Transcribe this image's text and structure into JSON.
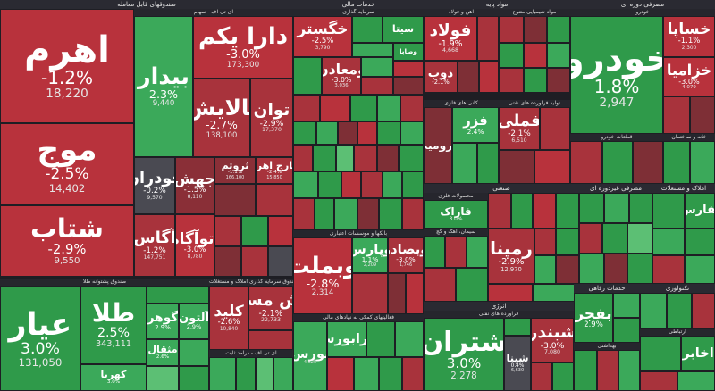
{
  "colors": {
    "up_strong": "#2f9a4a",
    "up_mid": "#3ba95a",
    "up_light": "#5cbf74",
    "down_strong": "#b8323c",
    "down_mid": "#a8333c",
    "down_dark": "#7e2f36",
    "neutral": "#4a4a52",
    "background": "#1e1e24"
  },
  "sectors": {
    "funds": "صندوقهای قابل معامله",
    "funds_sub": "ای تی اف - سهام",
    "fund_gold": "صندوق پشتوانه طلا",
    "fund_land": "صندوق سرمایه گذاری املاک و مستغلات",
    "fund_fixed": "ای تی اف - درآمد ثابت",
    "financial": "خدمات مالی",
    "financial_sub": "سرمایه گذاری",
    "bank": "بانکها و موسسات اعتباری",
    "financial2": "فعالیتهای کمکی به نهادهای مالی",
    "basic": "مواد پایه",
    "iron": "آهن و فولاد",
    "chem": "مواد شیمیایی متنوع",
    "copper": "کانی های فلزی",
    "petro": "تولید فرآورده های نفتی",
    "auto": "مصرفی دوره ای",
    "auto_sub": "خودرو",
    "auto_parts": "قطعات خودرو",
    "housing": "خانه و ساختمان",
    "industrial": "صنعتی",
    "metal": "محصولات فلزی",
    "cement": "سیمان، آهک و گچ",
    "non_durable": "مصرفی غیردوره ای",
    "real_estate": "املاک و مستغلات",
    "energy": "انرژی",
    "refinery": "فراورده های نفتی",
    "welfare": "خدمات رفاهی",
    "tech": "تکنولوژی",
    "telecom": "ارتباطی",
    "health": "بهداشتی"
  },
  "tiles": [
    {
      "key": "ahrom",
      "name": "اهرم",
      "pct": "-1.2%",
      "val": "18,220",
      "color": "#b8323c"
    },
    {
      "key": "mowj",
      "name": "موج",
      "pct": "-2.5%",
      "val": "14,402",
      "color": "#b8323c"
    },
    {
      "key": "shetab",
      "name": "شتاب",
      "pct": "-2.9%",
      "val": "9,550",
      "color": "#b8323c"
    },
    {
      "key": "darayekom",
      "name": "دارا یکم",
      "pct": "-3.0%",
      "val": "173,300",
      "color": "#b8323c"
    },
    {
      "key": "bidar",
      "name": "بیدار",
      "pct": "2.3%",
      "val": "9,440",
      "color": "#3ba95a"
    },
    {
      "key": "palaiesh",
      "name": "پالایش",
      "pct": "-2.7%",
      "val": "138,100",
      "color": "#a8333c"
    },
    {
      "key": "tavan",
      "name": "توان",
      "pct": "-2.9%",
      "val": "17,370",
      "color": "#a8333c"
    },
    {
      "key": "khodran",
      "name": "خودران",
      "pct": "-0.2%",
      "val": "9,570",
      "color": "#4a4a52"
    },
    {
      "key": "jahesh",
      "name": "جهش",
      "pct": "-1.5%",
      "val": "8,110",
      "color": "#8a2f37"
    },
    {
      "key": "teroutom",
      "name": "ثروتم",
      "pct": "-1.1%",
      "val": "166,100",
      "color": "#8a2f37"
    },
    {
      "key": "kharej",
      "name": "خارج اهرم",
      "pct": "-2.4%",
      "val": "15,850",
      "color": "#a8333c"
    },
    {
      "key": "agas",
      "name": "آگاس",
      "pct": "-1.2%",
      "val": "147,751",
      "color": "#a8333c"
    },
    {
      "key": "atrgah",
      "name": "اتوآگاه",
      "pct": "-3.0%",
      "val": "8,780",
      "color": "#b8323c"
    },
    {
      "key": "ayar",
      "name": "عیار",
      "pct": "3.0%",
      "val": "131,050",
      "color": "#2f9a4a"
    },
    {
      "key": "tala",
      "name": "طلا",
      "pct": "2.5%",
      "val": "343,111",
      "color": "#2f9a4a"
    },
    {
      "key": "gohar",
      "name": "گوهر",
      "pct": "2.9%",
      "val": "",
      "color": "#3ba95a"
    },
    {
      "key": "alton",
      "name": "آلتون",
      "pct": "2.9%",
      "val": "",
      "color": "#3ba95a"
    },
    {
      "key": "mesghal",
      "name": "مثقال",
      "pct": "2.6%",
      "val": "",
      "color": "#3ba95a"
    },
    {
      "key": "kahroba",
      "name": "کهربا",
      "pct": "3.0%",
      "val": "",
      "color": "#3ba95a"
    },
    {
      "key": "kelid",
      "name": "کلید",
      "pct": "-2.6%",
      "val": "10,840",
      "color": "#a8333c"
    },
    {
      "key": "zeshmask",
      "name": "زش مسکا",
      "pct": "-2.1%",
      "val": "22,733",
      "color": "#a8333c"
    },
    {
      "key": "khegostar",
      "name": "خگستر",
      "pct": "-2.5%",
      "val": "3,790",
      "color": "#b8323c"
    },
    {
      "key": "sita",
      "name": "سیتا",
      "pct": "",
      "val": "",
      "color": "#2f9a4a"
    },
    {
      "key": "vamaaden",
      "name": "ومعادن",
      "pct": "-3.0%",
      "val": "3,036",
      "color": "#a8333c"
    },
    {
      "key": "vasapa",
      "name": "وصاپا",
      "pct": "",
      "val": "",
      "color": "#2f9a4a"
    },
    {
      "key": "vebemlat",
      "name": "وبملت",
      "pct": "-2.8%",
      "val": "2,314",
      "color": "#b8323c"
    },
    {
      "key": "vepars",
      "name": "وپارس",
      "pct": "1.1%",
      "val": "2,209",
      "color": "#3ba95a"
    },
    {
      "key": "vesadr",
      "name": "وبصادر",
      "pct": "-3.0%",
      "val": "1,746",
      "color": "#a8333c"
    },
    {
      "key": "bours",
      "name": "بورس",
      "pct": "",
      "val": "4,625",
      "color": "#3ba95a"
    },
    {
      "key": "farabours",
      "name": "فرابورس",
      "pct": "",
      "val": "",
      "color": "#3ba95a"
    },
    {
      "key": "folad",
      "name": "فولاد",
      "pct": "-1.9%",
      "val": "4,668",
      "color": "#b8323c"
    },
    {
      "key": "zob",
      "name": "ذوب",
      "pct": "-2.1%",
      "val": "",
      "color": "#a8333c"
    },
    {
      "key": "fameli",
      "name": "فملی",
      "pct": "-2.1%",
      "val": "6,510",
      "color": "#a8333c"
    },
    {
      "key": "faraz",
      "name": "فزر",
      "pct": "2.4%",
      "val": "",
      "color": "#3ba95a"
    },
    {
      "key": "kroumit",
      "name": "کرومیت",
      "pct": "",
      "val": "",
      "color": "#7e2f36"
    },
    {
      "key": "khodro",
      "name": "خودرو",
      "pct": "1.8%",
      "val": "2,947",
      "color": "#2f9a4a"
    },
    {
      "key": "khasapa",
      "name": "خساپا",
      "pct": "-1.1%",
      "val": "2,300",
      "color": "#b8323c"
    },
    {
      "key": "khazamia",
      "name": "خزامیا",
      "pct": "-3.0%",
      "val": "4,079",
      "color": "#b8323c"
    },
    {
      "key": "faraak",
      "name": "فاراک",
      "pct": "3.0%",
      "val": "",
      "color": "#2f9a4a"
    },
    {
      "key": "ramena",
      "name": "رمپنا",
      "pct": "-2.9%",
      "val": "12,970",
      "color": "#a8333c"
    },
    {
      "key": "shetran",
      "name": "شتران",
      "pct": "3.0%",
      "val": "2,278",
      "color": "#2f9a4a"
    },
    {
      "key": "shepna",
      "name": "شپنا",
      "pct": "0.4%",
      "val": "6,630",
      "color": "#4a4a52"
    },
    {
      "key": "shebandar",
      "name": "شبندر",
      "pct": "-3.0%",
      "val": "7,080",
      "color": "#a8333c"
    },
    {
      "key": "boyjar",
      "name": "بفجر",
      "pct": "2.9%",
      "val": "",
      "color": "#2f9a4a"
    },
    {
      "key": "tafars",
      "name": "ثفارس",
      "pct": "",
      "val": "",
      "color": "#2f9a4a"
    },
    {
      "key": "akhaber",
      "name": "اخابر",
      "pct": "",
      "val": "",
      "color": "#2f9a4a"
    }
  ]
}
